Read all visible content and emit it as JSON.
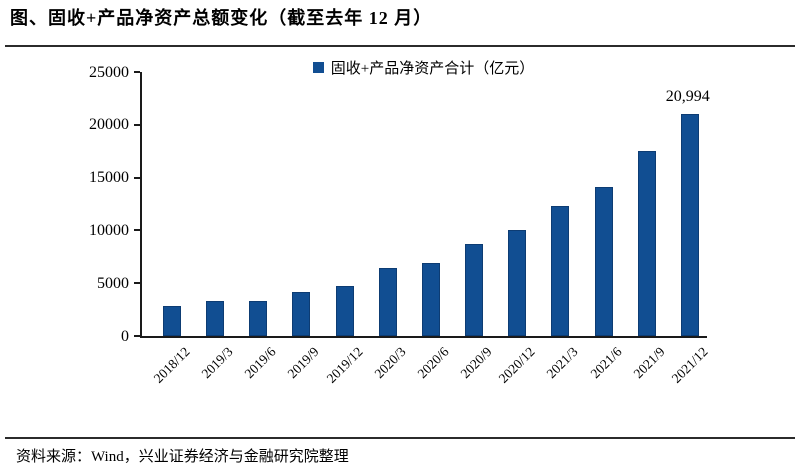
{
  "header": {
    "title": "图、固收+产品净资产总额变化（截至去年 12 月）"
  },
  "footer": {
    "source": "资料来源：Wind，兴业证券经济与金融研究院整理"
  },
  "chart_data": {
    "type": "bar",
    "title": "固收+产品净资产总额变化",
    "legend": "固收+产品净资产合计（亿元）",
    "legend_position": "top-center",
    "categories": [
      "2018/12",
      "2019/3",
      "2019/6",
      "2019/9",
      "2019/12",
      "2020/3",
      "2020/6",
      "2020/9",
      "2020/12",
      "2021/3",
      "2021/6",
      "2021/9",
      "2021/12"
    ],
    "values": [
      2800,
      3350,
      3350,
      4150,
      4750,
      6450,
      6900,
      8700,
      10000,
      12300,
      14100,
      17550,
      20994
    ],
    "yticks": [
      0,
      5000,
      10000,
      15000,
      20000,
      25000
    ],
    "ylim": [
      0,
      25000
    ],
    "grid": false,
    "bar_color": "#114E92",
    "bar_border_color": "#0d3c73",
    "axis_color": "#1a1a1a",
    "data_labels": [
      {
        "index": 12,
        "text": "20,994"
      }
    ]
  }
}
